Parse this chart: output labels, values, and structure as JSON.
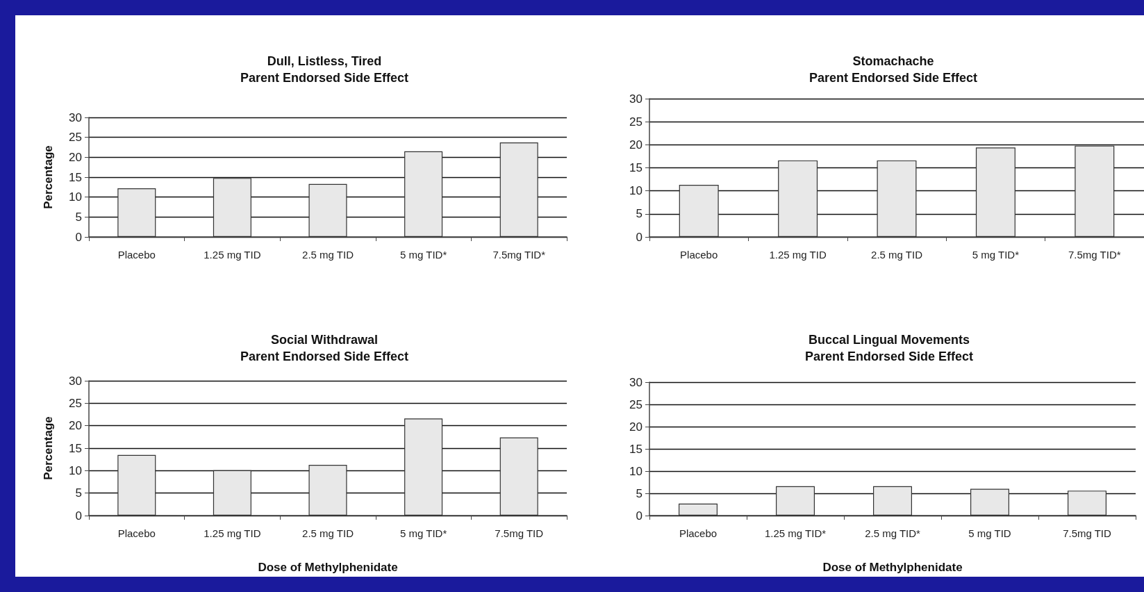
{
  "chart_data": [
    {
      "type": "bar",
      "title": "Dull, Listless, Tired",
      "subtitle": "Parent Endorsed Side Effect",
      "ylabel": "Percentage",
      "categories": [
        "Placebo",
        "1.25 mg TID",
        "2.5 mg TID",
        "5 mg TID*",
        "7.5mg TID*"
      ],
      "values": [
        12.2,
        14.8,
        13.3,
        21.5,
        23.7
      ],
      "color": "#e8e8e8",
      "ylim": [
        0,
        30
      ],
      "yticks": [
        0,
        5,
        10,
        15,
        20,
        25,
        30
      ],
      "grid": "y"
    },
    {
      "type": "bar",
      "title": "Stomachache",
      "subtitle": "Parent Endorsed Side Effect",
      "categories": [
        "Placebo",
        "1.25 mg TID",
        "2.5 mg TID",
        "5 mg TID*",
        "7.5mg TID*"
      ],
      "values": [
        11.3,
        16.6,
        16.6,
        19.4,
        19.8
      ],
      "color": "#e8e8e8",
      "ylim": [
        0,
        30
      ],
      "yticks": [
        0,
        5,
        10,
        15,
        20,
        25,
        30
      ],
      "grid": "y"
    },
    {
      "type": "bar",
      "title": "Social Withdrawal",
      "subtitle": "Parent Endorsed Side Effect",
      "xlabel": "Dose of Methylphenidate",
      "ylabel": "Percentage",
      "categories": [
        "Placebo",
        "1.25 mg TID",
        "2.5 mg TID",
        "5 mg TID*",
        "7.5mg TID"
      ],
      "values": [
        13.5,
        10.1,
        11.3,
        21.6,
        17.4
      ],
      "color": "#e8e8e8",
      "ylim": [
        0,
        30
      ],
      "yticks": [
        0,
        5,
        10,
        15,
        20,
        25,
        30
      ],
      "grid": "y"
    },
    {
      "type": "bar",
      "title": "Buccal Lingual Movements",
      "subtitle": "Parent Endorsed Side Effect",
      "xlabel": "Dose of Methylphenidate",
      "categories": [
        "Placebo",
        "1.25 mg TID*",
        "2.5 mg TID*",
        "5 mg TID",
        "7.5mg TID"
      ],
      "values": [
        2.7,
        6.6,
        6.6,
        6.0,
        5.6
      ],
      "color": "#e8e8e8",
      "ylim": [
        0,
        30
      ],
      "yticks": [
        0,
        5,
        10,
        15,
        20,
        25,
        30
      ],
      "grid": "y"
    }
  ]
}
